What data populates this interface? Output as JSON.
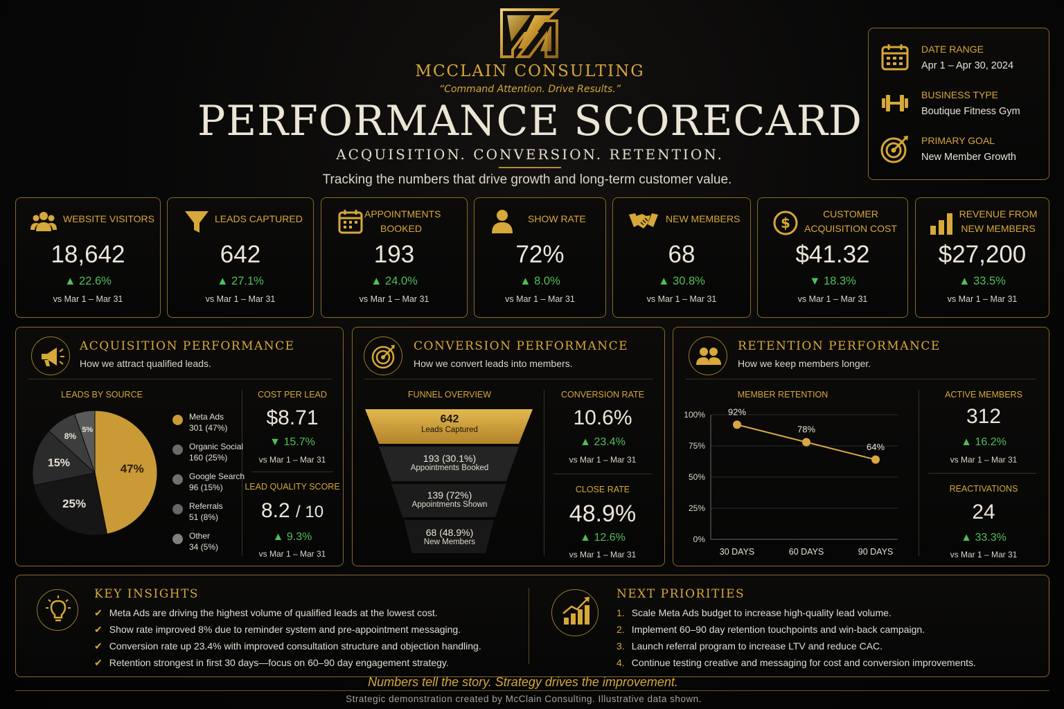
{
  "header": {
    "brand": "MCCLAIN CONSULTING",
    "tagline": "“Command Attention. Drive Results.”",
    "title": "PERFORMANCE SCORECARD",
    "subtitle": "ACQUISITION. CONVERSION. RETENTION.",
    "tracking": "Tracking the numbers that drive growth and long-term customer value."
  },
  "info": [
    {
      "icon": "calendar-icon",
      "label": "DATE RANGE",
      "value": "Apr 1 – Apr 30, 2024"
    },
    {
      "icon": "dumbbell-icon",
      "label": "BUSINESS TYPE",
      "value": "Boutique Fitness Gym"
    },
    {
      "icon": "target-icon",
      "label": "PRIMARY GOAL",
      "value": "New Member Growth"
    }
  ],
  "kpis": [
    {
      "icon": "people-icon",
      "label": "WEBSITE VISITORS",
      "value": "18,642",
      "delta": "▲ 22.6%",
      "compare": "vs Mar 1 – Mar 31"
    },
    {
      "icon": "funnel-icon",
      "label": "LEADS CAPTURED",
      "value": "642",
      "delta": "▲ 27.1%",
      "compare": "vs Mar 1 – Mar 31"
    },
    {
      "icon": "calendar-icon",
      "label": "APPOINTMENTS\nBOOKED",
      "value": "193",
      "delta": "▲ 24.0%",
      "compare": "vs Mar 1 – Mar 31"
    },
    {
      "icon": "person-icon",
      "label": "SHOW RATE",
      "value": "72%",
      "delta": "▲ 8.0%",
      "compare": "vs Mar 1 – Mar 31"
    },
    {
      "icon": "handshake-icon",
      "label": "NEW MEMBERS",
      "value": "68",
      "delta": "▲ 30.8%",
      "compare": "vs Mar 1 – Mar 31"
    },
    {
      "icon": "dollar-icon",
      "label": "CUSTOMER\nACQUISITION COST",
      "value": "$41.32",
      "delta": "▼ 18.3%",
      "compare": "vs Mar 1 – Mar 31"
    },
    {
      "icon": "bar-chart-icon",
      "label": "REVENUE FROM\nNEW MEMBERS",
      "value": "$27,200",
      "delta": "▲ 33.5%",
      "compare": "vs Mar 1 – Mar 31"
    }
  ],
  "acquisition": {
    "title": "ACQUISITION PERFORMANCE",
    "subtitle": "How we attract qualified leads.",
    "leads_label": "LEADS BY SOURCE",
    "cpl_label": "COST PER LEAD",
    "cpl_value": "$8.71",
    "cpl_delta": "▼ 15.7%",
    "cpl_compare": "vs Mar 1 – Mar 31",
    "lqs_label": "LEAD QUALITY SCORE",
    "lqs_value": "8.2",
    "lqs_suffix": "/ 10",
    "lqs_delta": "▲ 9.3%",
    "lqs_compare": "vs Mar 1 – Mar 31"
  },
  "chart_data": [
    {
      "type": "pie",
      "title": "LEADS BY SOURCE",
      "categories": [
        "Meta Ads",
        "Organic Social",
        "Google Search",
        "Referrals",
        "Other"
      ],
      "values": [
        301,
        160,
        96,
        51,
        34
      ],
      "percent_labels": [
        "47%",
        "25%",
        "15%",
        "8%",
        "5%"
      ],
      "legend_values": [
        "301 (47%)",
        "160 (25%)",
        "96 (15%)",
        "51 (8%)",
        "34 (5%)"
      ],
      "colors": [
        "#c99a35",
        "#161616",
        "#2b2b2b",
        "#3d3d3d",
        "#5a5a5a"
      ],
      "legend_colors": [
        "#c99a35",
        "#6a6a6a",
        "#707070",
        "#666666",
        "#808080"
      ]
    },
    {
      "type": "line",
      "title": "MEMBER RETENTION",
      "categories": [
        "30 DAYS",
        "60 DAYS",
        "90 DAYS"
      ],
      "values": [
        92,
        78,
        64
      ],
      "data_labels": [
        "92%",
        "78%",
        "64%"
      ],
      "yticks": [
        "100%",
        "75%",
        "50%",
        "25%",
        "0%"
      ],
      "ylim": [
        0,
        100
      ],
      "color": "#d9a843"
    }
  ],
  "conversion": {
    "title": "CONVERSION PERFORMANCE",
    "subtitle": "How we convert leads into members.",
    "funnel_label": "FUNNEL OVERVIEW",
    "funnel": [
      {
        "value": "642",
        "label": "Leads Captured"
      },
      {
        "value": "193 (30.1%)",
        "label": "Appointments Booked"
      },
      {
        "value": "139 (72%)",
        "label": "Appointments Shown"
      },
      {
        "value": "68 (48.9%)",
        "label": "New Members"
      }
    ],
    "cr_label": "CONVERSION RATE",
    "cr_value": "10.6%",
    "cr_delta": "▲ 23.4%",
    "cr_compare": "vs Mar 1 – Mar 31",
    "close_label": "CLOSE RATE",
    "close_value": "48.9%",
    "close_delta": "▲ 12.6%",
    "close_compare": "vs Mar 1 – Mar 31"
  },
  "retention": {
    "title": "RETENTION PERFORMANCE",
    "subtitle": "How we keep members longer.",
    "chart_label": "MEMBER RETENTION",
    "active_label": "ACTIVE MEMBERS",
    "active_value": "312",
    "active_delta": "▲ 16.2%",
    "active_compare": "vs Mar 1 – Mar 31",
    "react_label": "REACTIVATIONS",
    "react_value": "24",
    "react_delta": "▲ 33.3%",
    "react_compare": "vs Mar 1 – Mar 31"
  },
  "insights": {
    "title": "KEY INSIGHTS",
    "items": [
      "Meta Ads are driving the highest volume of qualified leads at the lowest cost.",
      "Show rate improved 8% due to reminder system and pre-appointment messaging.",
      "Conversion rate up 23.4% with improved consultation structure and objection handling.",
      "Retention strongest in first 30 days—focus on 60–90 day engagement strategy."
    ]
  },
  "priorities": {
    "title": "NEXT PRIORITIES",
    "items": [
      {
        "num": "1.",
        "text": "Scale Meta Ads budget to increase high-quality lead volume."
      },
      {
        "num": "2.",
        "text": "Implement 60–90 day retention touchpoints and win-back campaign."
      },
      {
        "num": "3.",
        "text": "Launch referral program to increase LTV and reduce CAC."
      },
      {
        "num": "4.",
        "text": "Continue testing creative and messaging for cost and conversion improvements."
      }
    ]
  },
  "footer": {
    "quote": "Numbers tell the story. Strategy drives the improvement.",
    "note": "Strategic demonstration created by McClain Consulting. Illustrative data shown."
  }
}
